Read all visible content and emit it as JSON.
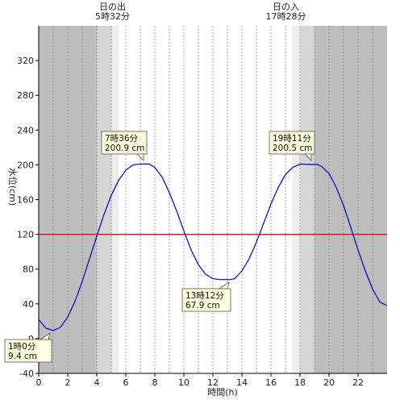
{
  "chart_data": {
    "type": "line",
    "xlabel": "時間(h)",
    "ylabel": "水位(cm)",
    "xlim": [
      0,
      24
    ],
    "ylim": [
      -40,
      360
    ],
    "x_ticks": [
      0,
      2,
      4,
      6,
      8,
      10,
      12,
      14,
      16,
      18,
      20,
      22
    ],
    "y_ticks": [
      -40,
      0,
      40,
      80,
      120,
      160,
      200,
      240,
      280,
      320
    ],
    "grid": "vertical dotted every 1h",
    "reference_line": {
      "value": 120,
      "color": "#e00000"
    },
    "series": [
      {
        "color": "#0000cc",
        "x": [
          0,
          0.5,
          1,
          1.5,
          2,
          2.5,
          3,
          3.5,
          4,
          4.5,
          5,
          5.5,
          6,
          6.5,
          7,
          7.6,
          8,
          8.5,
          9,
          9.5,
          10,
          10.5,
          11,
          11.5,
          12,
          12.5,
          13.2,
          13.5,
          14,
          14.5,
          15,
          15.5,
          16,
          16.5,
          17,
          17.5,
          18,
          18.5,
          19.2,
          19.5,
          20,
          20.5,
          21,
          21.5,
          22,
          22.5,
          23,
          23.5,
          24
        ],
        "y": [
          22,
          12,
          9.4,
          13,
          25,
          43,
          66,
          92,
          118,
          143,
          165,
          182,
          194,
          200,
          201,
          200.9,
          197,
          186,
          168,
          147,
          124,
          102,
          85,
          74,
          69,
          67.9,
          67.9,
          69,
          78,
          92,
          111,
          133,
          155,
          174,
          189,
          197,
          201,
          200.5,
          200.5,
          198,
          190,
          174,
          153,
          128,
          102,
          78,
          57,
          42,
          38
        ]
      }
    ],
    "annotations": [
      {
        "x": 1.0,
        "y": 9.4,
        "time": "1時0分",
        "value": "9.4 cm"
      },
      {
        "x": 7.6,
        "y": 200.9,
        "time": "7時36分",
        "value": "200.9 cm"
      },
      {
        "x": 13.2,
        "y": 67.9,
        "time": "13時12分",
        "value": "67.9 cm"
      },
      {
        "x": 19.18,
        "y": 200.5,
        "time": "19時11分",
        "value": "200.5 cm"
      }
    ],
    "sun": {
      "sunrise": {
        "x": 5.53,
        "title": "日の出",
        "time": "5時32分"
      },
      "sunset": {
        "x": 17.47,
        "title": "日の入",
        "time": "17時28分"
      }
    },
    "bands": [
      {
        "from": 0,
        "to": 4.0,
        "color": "#bdbdbd"
      },
      {
        "from": 4.0,
        "to": 5.0,
        "color": "#d6d6d6"
      },
      {
        "from": 5.0,
        "to": 5.53,
        "color": "#ededed"
      },
      {
        "from": 17.47,
        "to": 18.0,
        "color": "#ededed"
      },
      {
        "from": 18.0,
        "to": 19.0,
        "color": "#d6d6d6"
      },
      {
        "from": 19.0,
        "to": 24,
        "color": "#bdbdbd"
      }
    ]
  }
}
